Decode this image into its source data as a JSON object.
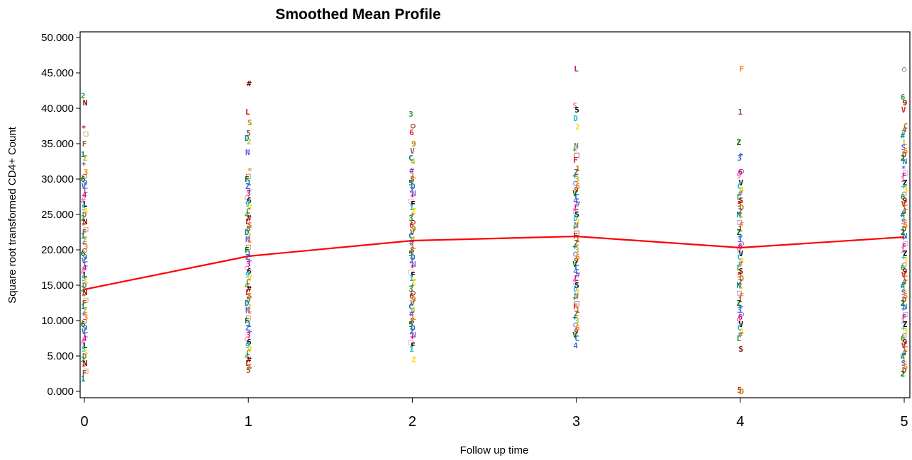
{
  "chart_data": {
    "type": "scatter",
    "title": "Smoothed Mean Profile",
    "xlabel": "Follow up time",
    "ylabel": "Square root transformed CD4+ Count",
    "xlim": [
      0,
      5
    ],
    "ylim": [
      0,
      50
    ],
    "x_ticks": [
      "0",
      "1",
      "2",
      "3",
      "4",
      "5"
    ],
    "y_ticks": [
      "0.000",
      "5.000",
      "10.000",
      "15.000",
      "20.000",
      "25.000",
      "30.000",
      "35.000",
      "40.000",
      "45.000",
      "50.000"
    ],
    "grid": false,
    "legend": "none",
    "series": [
      {
        "name": "",
        "kind": "line",
        "color": "#ff0000",
        "x": [
          0,
          1,
          2,
          3,
          4,
          5
        ],
        "y": [
          14.4,
          19.1,
          21.3,
          21.9,
          20.3,
          21.8
        ]
      }
    ],
    "scatter_groups": [
      {
        "x": 0,
        "y": [
          41.8,
          40.8,
          37.2,
          36.5,
          35.0,
          33.5,
          33.0,
          32.2,
          31.0,
          30.5,
          30.0,
          29.5,
          29.0,
          28.4,
          27.8,
          27.0,
          26.5,
          26.0,
          25.5,
          25.0,
          24.5,
          24.0,
          23.5,
          23.0,
          22.5,
          22.0,
          21.5,
          21.0,
          20.5,
          20.0,
          19.5,
          19.0,
          18.5,
          18.0,
          17.5,
          17.0,
          16.5,
          16.0,
          15.5,
          15.0,
          14.5,
          14.0,
          13.5,
          13.0,
          12.5,
          12.0,
          11.5,
          11.0,
          10.5,
          10.0,
          9.5,
          9.0,
          8.5,
          8.0,
          7.5,
          7.0,
          6.5,
          6.0,
          5.5,
          5.0,
          4.5,
          4.0,
          3.5,
          3.0,
          2.6,
          1.8
        ]
      },
      {
        "x": 1,
        "y": [
          43.5,
          39.5,
          38.0,
          36.5,
          35.8,
          35.3,
          33.8,
          31.2,
          30.5,
          30.0,
          29.5,
          29.0,
          28.5,
          28.0,
          27.5,
          27.0,
          26.5,
          26.0,
          25.5,
          25.0,
          24.5,
          24.0,
          23.5,
          23.0,
          22.5,
          22.0,
          21.5,
          21.0,
          20.5,
          20.0,
          19.5,
          19.0,
          18.5,
          18.0,
          17.5,
          17.0,
          16.5,
          16.0,
          15.5,
          15.0,
          14.5,
          14.0,
          13.5,
          13.0,
          12.5,
          12.0,
          11.5,
          11.0,
          10.5,
          10.0,
          9.5,
          9.0,
          8.5,
          8.0,
          7.5,
          7.0,
          6.5,
          6.0,
          5.5,
          5.0,
          4.5,
          4.0,
          3.5,
          3.0
        ]
      },
      {
        "x": 2,
        "y": [
          39.2,
          37.6,
          36.6,
          35.0,
          34.0,
          33.0,
          32.5,
          31.2,
          30.5,
          30.0,
          29.5,
          29.0,
          28.5,
          28.0,
          27.5,
          27.0,
          26.5,
          26.0,
          25.5,
          25.0,
          24.5,
          24.0,
          23.5,
          23.0,
          22.5,
          22.0,
          21.5,
          21.0,
          20.5,
          20.0,
          19.5,
          19.0,
          18.5,
          18.0,
          17.5,
          17.0,
          16.5,
          16.0,
          15.5,
          15.0,
          14.5,
          14.0,
          13.5,
          13.0,
          12.5,
          12.0,
          11.5,
          11.0,
          10.5,
          10.0,
          9.5,
          9.0,
          8.5,
          8.0,
          7.5,
          7.0,
          6.5,
          6.0,
          4.5
        ]
      },
      {
        "x": 3,
        "y": [
          45.6,
          40.4,
          39.8,
          38.6,
          37.4,
          34.7,
          34.0,
          33.5,
          32.7,
          31.5,
          31.0,
          30.5,
          30.0,
          29.5,
          29.0,
          28.5,
          28.0,
          27.5,
          27.0,
          26.5,
          26.0,
          25.5,
          25.0,
          24.5,
          24.0,
          23.5,
          23.0,
          22.5,
          22.0,
          21.5,
          21.0,
          20.5,
          20.0,
          19.5,
          19.0,
          18.5,
          18.0,
          17.5,
          17.0,
          16.5,
          16.0,
          15.5,
          15.0,
          14.5,
          14.0,
          13.5,
          13.0,
          12.5,
          12.0,
          11.5,
          11.0,
          10.5,
          10.0,
          9.5,
          9.0,
          8.5,
          8.0,
          7.5,
          6.5
        ]
      },
      {
        "x": 4,
        "y": [
          45.6,
          39.5,
          35.2,
          33.5,
          33.0,
          31.2,
          31.0,
          30.5,
          29.5,
          29.0,
          28.5,
          28.0,
          27.5,
          27.0,
          26.5,
          26.0,
          25.5,
          25.0,
          24.5,
          24.0,
          23.5,
          23.0,
          22.5,
          22.0,
          21.5,
          21.0,
          20.5,
          20.0,
          19.5,
          19.0,
          18.5,
          18.0,
          17.5,
          17.0,
          16.5,
          16.0,
          15.5,
          15.0,
          14.5,
          14.0,
          13.5,
          13.0,
          12.5,
          12.0,
          11.5,
          11.0,
          10.5,
          10.0,
          9.5,
          9.0,
          8.5,
          8.0,
          7.5,
          6.0,
          0.2,
          0.0
        ]
      },
      {
        "x": 5,
        "y": [
          45.6,
          41.6,
          40.8,
          39.8,
          37.5,
          37.0,
          36.2,
          35.2,
          34.5,
          34.0,
          33.5,
          33.0,
          32.5,
          31.5,
          31.0,
          30.5,
          30.0,
          29.5,
          29.0,
          28.5,
          28.0,
          27.5,
          27.0,
          26.5,
          26.0,
          25.5,
          25.0,
          24.5,
          24.0,
          23.5,
          23.0,
          22.5,
          22.0,
          21.5,
          21.0,
          20.5,
          20.0,
          19.5,
          19.0,
          18.5,
          18.0,
          17.5,
          17.0,
          16.5,
          16.0,
          15.5,
          15.0,
          14.5,
          14.0,
          13.5,
          13.0,
          12.5,
          12.0,
          11.5,
          11.0,
          10.5,
          10.0,
          9.5,
          9.0,
          8.5,
          8.0,
          7.5,
          7.0,
          6.5,
          6.0,
          5.5,
          5.0,
          4.5,
          4.0,
          3.5,
          3.0,
          2.5
        ]
      }
    ],
    "marker_symbols": [
      "2",
      "□",
      "Z",
      "○",
      "V",
      "#",
      "5",
      "N",
      "F",
      "+",
      "6",
      "C",
      "L",
      "D",
      "*",
      "1",
      "3",
      "9",
      "4",
      "S"
    ],
    "marker_colors": [
      "#2ca02c",
      "#1f77b4",
      "#d62728",
      "#9467bd",
      "#8c564b",
      "#e377c2",
      "#bcbd22",
      "#17becf",
      "#ff7f0e",
      "#7f7f7f",
      "#006400",
      "#800000",
      "#4169e1",
      "#b8860b",
      "#c71585",
      "#008080",
      "#000000",
      "#6a5acd",
      "#ffd700",
      "#a0522d"
    ]
  }
}
